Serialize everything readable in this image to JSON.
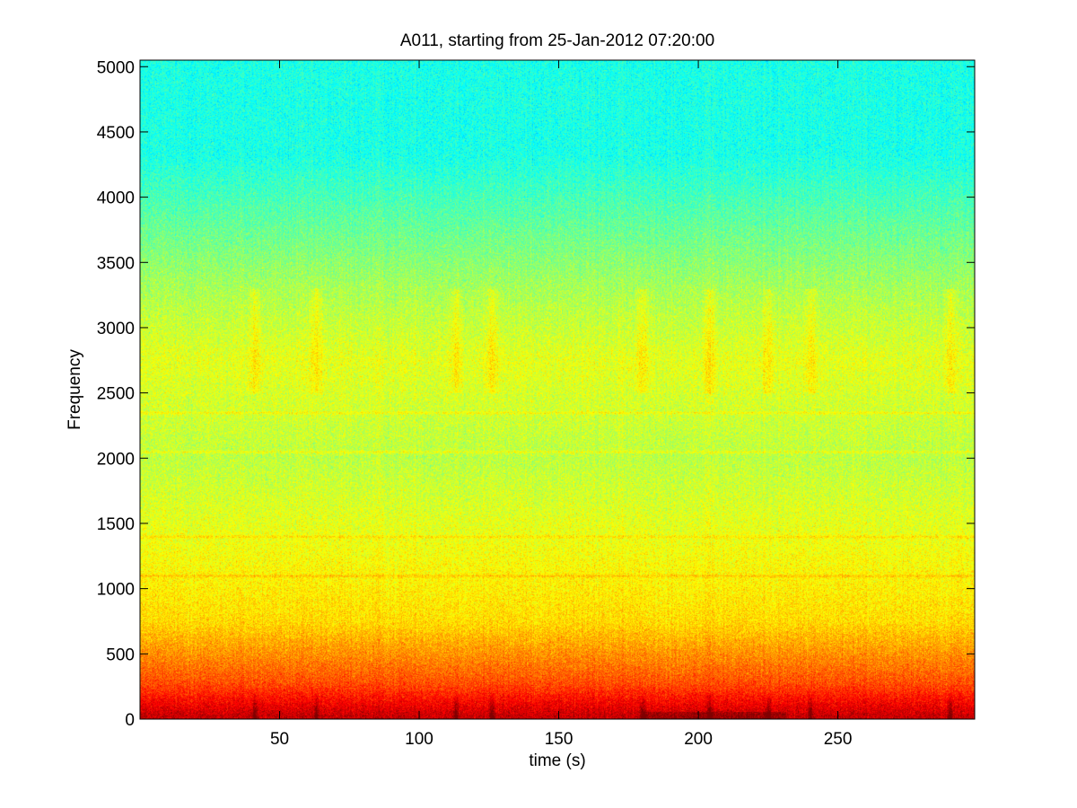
{
  "chart_data": {
    "type": "heatmap",
    "title": "A011, starting from 25-Jan-2012 07:20:00",
    "xlabel": "time (s)",
    "ylabel": "Frequency",
    "xlim": [
      0,
      299
    ],
    "ylim": [
      0,
      5050
    ],
    "xticks": [
      50,
      100,
      150,
      200,
      250
    ],
    "yticks": [
      0,
      500,
      1000,
      1500,
      2000,
      2500,
      3000,
      3500,
      4000,
      4500,
      5000
    ],
    "colormap": "jet",
    "grid": false,
    "legend": "none",
    "description_levels": {
      "note_units": "relative colormap level 0-1 (jet)",
      "bands": [
        {
          "freq_from": 0,
          "freq_to": 60,
          "level": 0.93
        },
        {
          "freq_from": 60,
          "freq_to": 500,
          "level": 0.8
        },
        {
          "freq_from": 500,
          "freq_to": 1000,
          "level": 0.66
        },
        {
          "freq_from": 1000,
          "freq_to": 1500,
          "level": 0.62
        },
        {
          "freq_from": 1500,
          "freq_to": 2500,
          "level": 0.56
        },
        {
          "freq_from": 2500,
          "freq_to": 3000,
          "level": 0.6
        },
        {
          "freq_from": 3000,
          "freq_to": 3600,
          "level": 0.54
        },
        {
          "freq_from": 3600,
          "freq_to": 5050,
          "level": 0.4
        }
      ],
      "horizontal_lines_hz": [
        1100,
        1400,
        2050,
        2350
      ],
      "broadband_events_s": [
        41,
        63,
        113,
        126,
        180,
        204,
        225,
        240,
        290
      ]
    }
  }
}
